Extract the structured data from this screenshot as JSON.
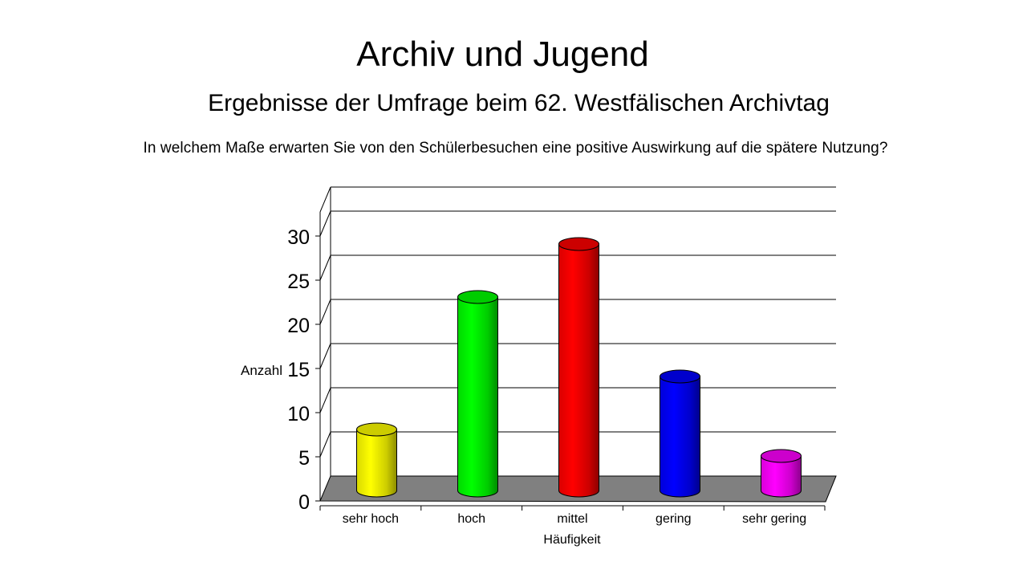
{
  "slide": {
    "title": "Archiv und Jugend",
    "subtitle": "Ergebnisse der Umfrage beim 62. Westfälischen Archivtag",
    "question": "In welchem Maße erwarten Sie von den Schülerbesuchen eine positive Auswirkung auf die spätere Nutzung?"
  },
  "chart_data": {
    "type": "bar",
    "style": "3d-cylinder",
    "title": "",
    "xlabel": "Häufigkeit",
    "ylabel": "Anzahl",
    "categories": [
      "sehr hoch",
      "hoch",
      "mittel",
      "gering",
      "sehr gering"
    ],
    "values": [
      6,
      21,
      27,
      12,
      3
    ],
    "colors": [
      "#ffff00",
      "#00ff00",
      "#ff0000",
      "#0000ff",
      "#ff00ff"
    ],
    "ylim": [
      0,
      30
    ],
    "yticks": [
      0,
      5,
      10,
      15,
      20,
      25,
      30
    ],
    "grid": true,
    "floor_color": "#808080",
    "legend": "none"
  }
}
